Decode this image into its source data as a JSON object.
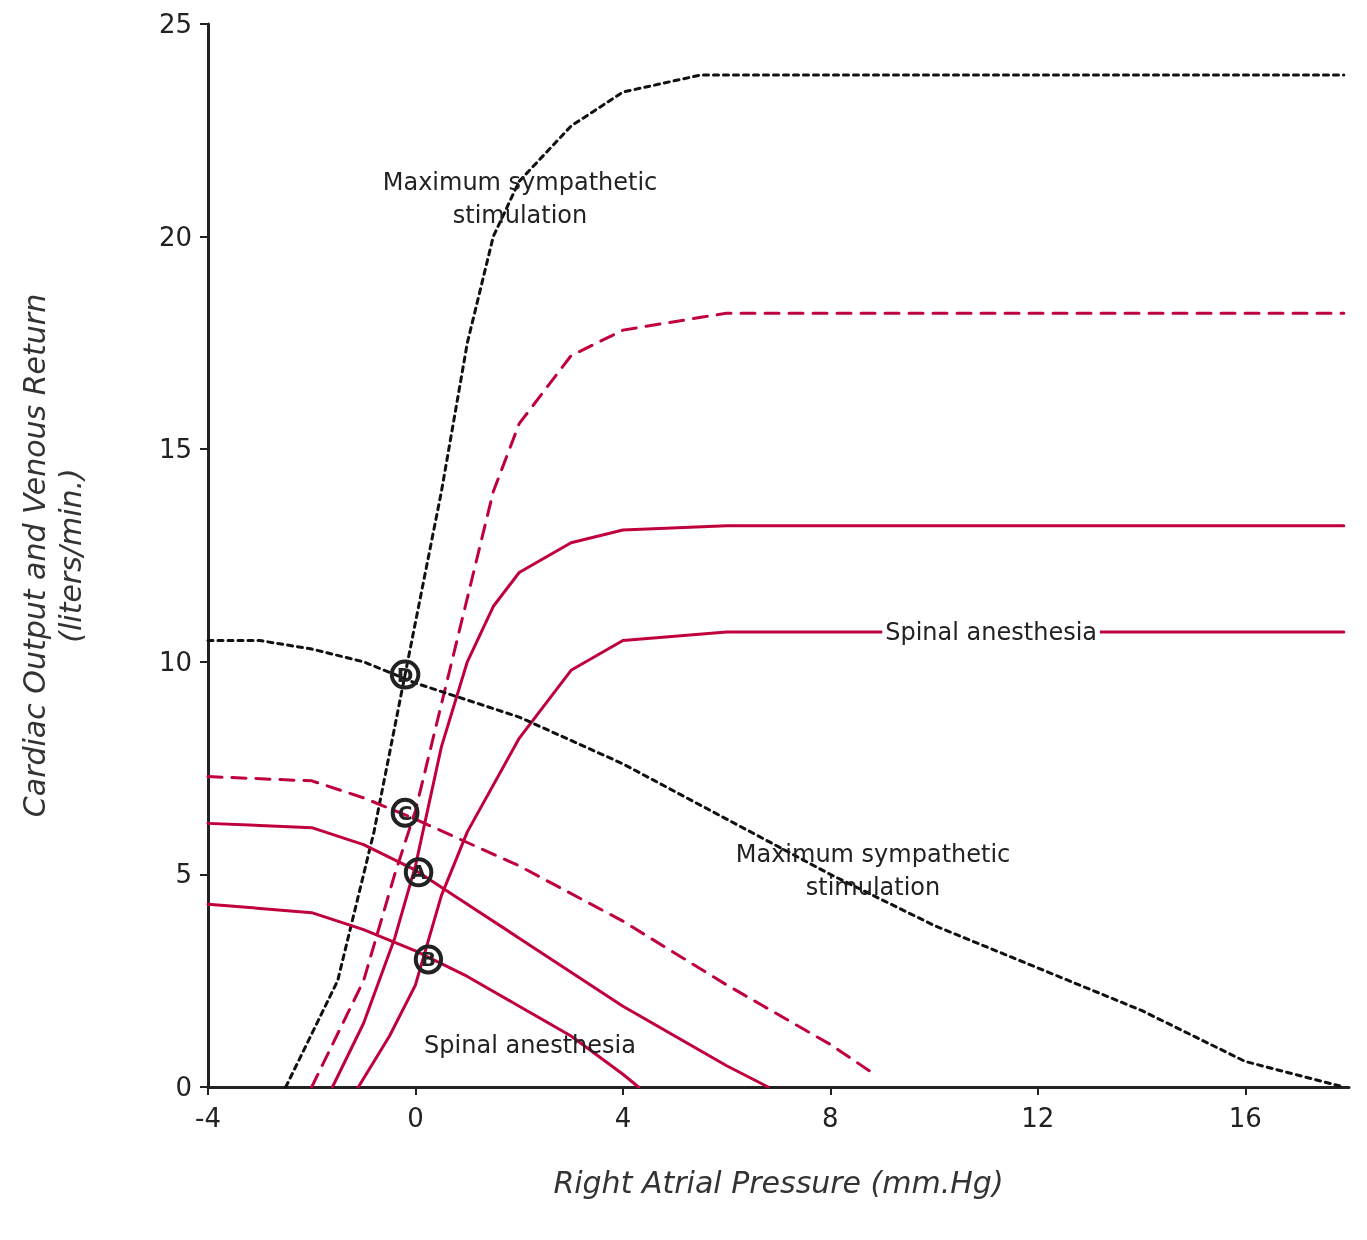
{
  "chart_data": {
    "type": "line",
    "xlabel": "Right Atrial Pressure (mm.Hg)",
    "ylabel": "Cardiac Output and Venous Return\n(liters/min.)",
    "xlim": [
      -4,
      18
    ],
    "ylim": [
      0,
      25
    ],
    "xticks": [
      -4,
      0,
      4,
      8,
      12,
      16
    ],
    "yticks": [
      0,
      5,
      10,
      15,
      20,
      25
    ],
    "grid": false,
    "marker": "none",
    "series": [
      {
        "color": "#c0003c",
        "line_style": "solid",
        "x": [
          -1.6,
          -1.0,
          -0.4,
          0,
          0.5,
          1,
          1.5,
          2,
          3,
          4,
          6,
          17.9
        ],
        "values": [
          0,
          1.5,
          3.5,
          5.2,
          8,
          10,
          11.3,
          12.1,
          12.8,
          13.1,
          13.2,
          13.2
        ]
      },
      {
        "color": "#c0003c",
        "line_style": "solid",
        "x": [
          -1.1,
          -0.5,
          0,
          0.5,
          1,
          2,
          3,
          4,
          6,
          17.9
        ],
        "values": [
          0,
          1.2,
          2.4,
          4.5,
          6,
          8.2,
          9.8,
          10.5,
          10.7,
          10.7
        ]
      },
      {
        "color": "#c0003c",
        "line_style": "dashed",
        "x": [
          -2,
          -1,
          -0.4,
          0,
          0.5,
          1,
          1.5,
          2,
          3,
          4,
          6,
          17.9
        ],
        "values": [
          0,
          2.5,
          5,
          6.5,
          9,
          11.5,
          14,
          15.6,
          17.2,
          17.8,
          18.2,
          18.2
        ]
      },
      {
        "color": "#111111",
        "line_style": "dotted",
        "x": [
          -2.5,
          -1.5,
          -0.8,
          -0.2,
          0.5,
          1,
          1.5,
          2,
          3,
          4,
          5.5,
          17.9
        ],
        "values": [
          0,
          2.5,
          6,
          9.7,
          14,
          17.5,
          20,
          21.3,
          22.6,
          23.4,
          23.8,
          23.8
        ]
      },
      {
        "color": "#c0003c",
        "line_style": "solid",
        "x": [
          -4,
          -2,
          -1,
          0,
          1,
          2,
          4,
          6,
          6.8
        ],
        "values": [
          6.2,
          6.1,
          5.7,
          5.1,
          4.3,
          3.5,
          1.9,
          0.5,
          0
        ]
      },
      {
        "color": "#c0003c",
        "line_style": "solid",
        "x": [
          -4,
          -2,
          -1,
          0,
          1,
          2,
          3,
          4,
          4.3
        ],
        "values": [
          4.3,
          4.1,
          3.7,
          3.2,
          2.6,
          1.9,
          1.2,
          0.3,
          0
        ]
      },
      {
        "color": "#c0003c",
        "line_style": "dashed",
        "x": [
          -4,
          -2,
          -1,
          0,
          2,
          4,
          6,
          8,
          8.85
        ],
        "values": [
          7.3,
          7.2,
          6.8,
          6.3,
          5.2,
          3.9,
          2.4,
          1.0,
          0.3
        ]
      },
      {
        "color": "#111111",
        "line_style": "dotted",
        "x": [
          -4,
          -3,
          -2,
          -1,
          0,
          2,
          4,
          6,
          8,
          10,
          12,
          14,
          16,
          17.9
        ],
        "values": [
          10.5,
          10.5,
          10.3,
          10,
          9.5,
          8.7,
          7.6,
          6.3,
          5.0,
          3.8,
          2.8,
          1.8,
          0.6,
          0
        ]
      }
    ],
    "annotations": [
      "Maximum sympathetic\nstimulation",
      "Maximum sympathetic\nstimulation",
      {
        "text": "Spinal anesthesia",
        "x": 11.1,
        "y": 10.7
      },
      "Spinal anesthesia",
      {
        "text": "D",
        "x": -0.2,
        "y": 9.7
      },
      {
        "text": "C",
        "x": -0.2,
        "y": 6.45
      },
      {
        "text": "A",
        "x": 0.06,
        "y": 5.05
      },
      {
        "text": "B",
        "x": 0.25,
        "y": 3.0
      }
    ]
  }
}
